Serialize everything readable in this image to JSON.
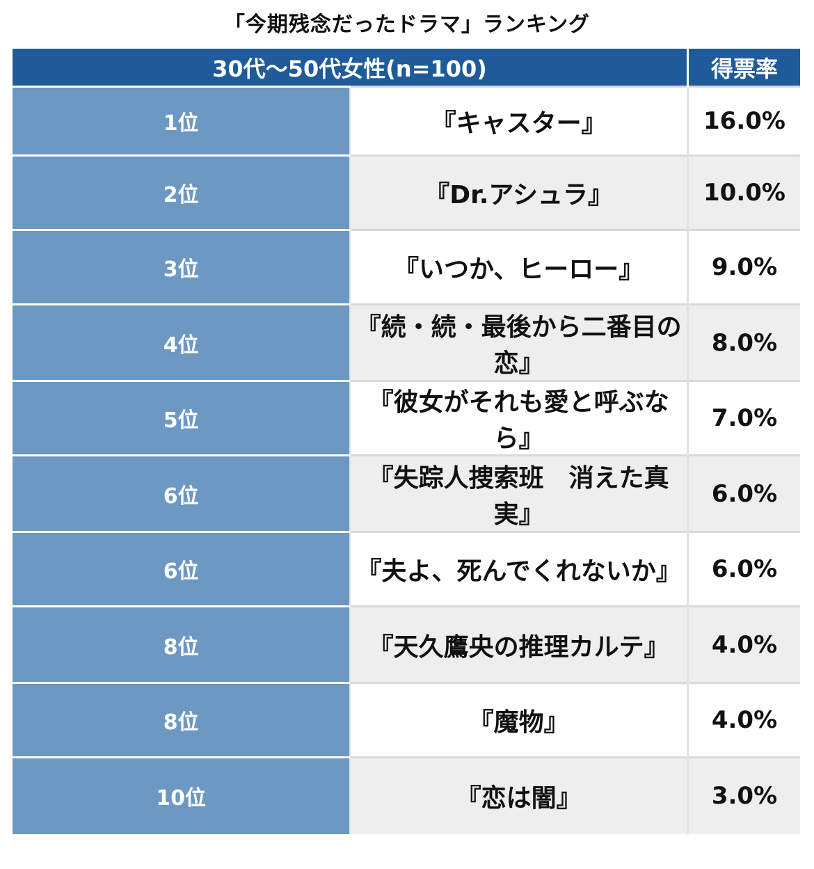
{
  "title": "「今期残念だったドラマ」ランキング",
  "header": {
    "group_label": "30代〜50代女性(n=100)",
    "rate_label": "得票率"
  },
  "rows": [
    {
      "rank": "1位",
      "title": "『キャスター』",
      "rate": "16.0%"
    },
    {
      "rank": "2位",
      "title": "『Dr.アシュラ』",
      "rate": "10.0%"
    },
    {
      "rank": "3位",
      "title": "『いつか、ヒーロー』",
      "rate": "9.0%"
    },
    {
      "rank": "4位",
      "title": "『続・続・最後から二番目の恋』",
      "rate": "8.0%"
    },
    {
      "rank": "5位",
      "title": "『彼女がそれも愛と呼ぶなら』",
      "rate": "7.0%"
    },
    {
      "rank": "6位",
      "title": "『失踪人捜索班　消えた真実』",
      "rate": "6.0%"
    },
    {
      "rank": "6位",
      "title": "『夫よ、死んでくれないか』",
      "rate": "6.0%"
    },
    {
      "rank": "8位",
      "title": "『天久鷹央の推理カルテ』",
      "rate": "4.0%"
    },
    {
      "rank": "8位",
      "title": "『魔物』",
      "rate": "4.0%"
    },
    {
      "rank": "10位",
      "title": "『恋は闇』",
      "rate": "3.0%"
    }
  ],
  "chart_data": {
    "type": "table",
    "title": "「今期残念だったドラマ」ランキング",
    "columns": [
      "30代〜50代女性(n=100)",
      "得票率"
    ],
    "categories": [
      "『キャスター』",
      "『Dr.アシュラ』",
      "『いつか、ヒーロー』",
      "『続・続・最後から二番目の恋』",
      "『彼女がそれも愛と呼ぶなら』",
      "『失踪人捜索班　消えた真実』",
      "『夫よ、死んでくれないか』",
      "『天久鷹央の推理カルテ』",
      "『魔物』",
      "『恋は闇』"
    ],
    "ranks": [
      "1位",
      "2位",
      "3位",
      "4位",
      "5位",
      "6位",
      "6位",
      "8位",
      "8位",
      "10位"
    ],
    "values": [
      16.0,
      10.0,
      9.0,
      8.0,
      7.0,
      6.0,
      6.0,
      4.0,
      4.0,
      3.0
    ]
  },
  "colors": {
    "header_bg": "#1f5b9a",
    "rank_bg": "#6c98c2",
    "row_alt_bg": "#eeeeee"
  }
}
